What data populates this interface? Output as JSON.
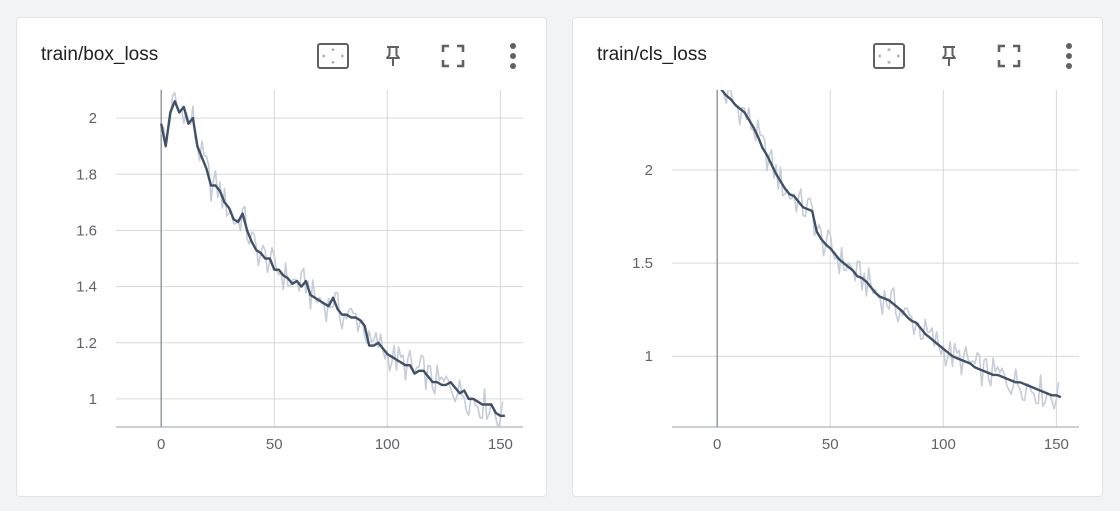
{
  "colors": {
    "background": "#f1f3f4",
    "card": "#ffffff",
    "grid": "#d6d9dc",
    "zero_axis": "#9aa0a6",
    "axis": "#9aa0a6",
    "smoothed_line": "#425066",
    "raw_line": "#c6cdd8",
    "icon": "#616161"
  },
  "icons": {
    "fit_domain": "fit-domain-icon",
    "pin": "pin-icon",
    "fullscreen": "fullscreen-icon",
    "more": "more-vert-icon"
  },
  "charts": [
    {
      "title": "train/box_loss",
      "chart_data": {
        "type": "line",
        "title": "train/box_loss",
        "xlabel": "",
        "ylabel": "",
        "xlim": [
          -20,
          160
        ],
        "ylim": [
          0.9,
          2.1
        ],
        "x_ticks": [
          0,
          50,
          100,
          150
        ],
        "y_ticks": [
          1,
          1.2,
          1.4,
          1.6,
          1.8,
          2
        ],
        "y_tick_labels": [
          "1",
          "1.2",
          "1.4",
          "1.6",
          "1.8",
          "2"
        ],
        "grid": true,
        "series": [
          {
            "x": [
              0,
              2,
              4,
              6,
              8,
              10,
              12,
              14,
              16,
              18,
              20,
              22,
              24,
              26,
              28,
              30,
              32,
              34,
              36,
              38,
              40,
              42,
              44,
              46,
              48,
              50,
              52,
              54,
              56,
              58,
              60,
              62,
              64,
              66,
              68,
              70,
              72,
              74,
              76,
              78,
              80,
              82,
              84,
              86,
              88,
              90,
              92,
              94,
              96,
              98,
              100,
              102,
              104,
              106,
              108,
              110,
              112,
              114,
              116,
              118,
              120,
              122,
              124,
              126,
              128,
              130,
              132,
              134,
              136,
              138,
              140,
              142,
              144,
              146,
              148,
              150,
              152
            ],
            "y": [
              1.98,
              1.9,
              2.02,
              2.06,
              2.02,
              2.04,
              1.98,
              2.0,
              1.9,
              1.86,
              1.82,
              1.76,
              1.76,
              1.74,
              1.7,
              1.68,
              1.64,
              1.63,
              1.66,
              1.6,
              1.56,
              1.53,
              1.52,
              1.5,
              1.5,
              1.46,
              1.46,
              1.44,
              1.43,
              1.41,
              1.42,
              1.4,
              1.42,
              1.37,
              1.36,
              1.35,
              1.34,
              1.33,
              1.36,
              1.32,
              1.3,
              1.3,
              1.29,
              1.29,
              1.28,
              1.26,
              1.19,
              1.19,
              1.2,
              1.18,
              1.16,
              1.15,
              1.14,
              1.13,
              1.12,
              1.12,
              1.09,
              1.1,
              1.1,
              1.08,
              1.06,
              1.06,
              1.05,
              1.05,
              1.06,
              1.04,
              1.02,
              1.03,
              1.0,
              1.0,
              0.99,
              0.98,
              0.98,
              0.98,
              0.95,
              0.94,
              0.94
            ]
          }
        ]
      }
    },
    {
      "title": "train/cls_loss",
      "chart_data": {
        "type": "line",
        "title": "train/cls_loss",
        "xlabel": "",
        "ylabel": "",
        "xlim": [
          -20,
          160
        ],
        "ylim": [
          0.62,
          2.43
        ],
        "x_ticks": [
          0,
          50,
          100,
          150
        ],
        "y_ticks": [
          1,
          1.5,
          2
        ],
        "y_tick_labels": [
          "1",
          "1.5",
          "2"
        ],
        "grid": true,
        "series": [
          {
            "x": [
              0,
              2,
              4,
              6,
              8,
              10,
              12,
              14,
              16,
              18,
              20,
              22,
              24,
              26,
              28,
              30,
              32,
              34,
              36,
              38,
              40,
              42,
              44,
              46,
              48,
              50,
              52,
              54,
              56,
              58,
              60,
              62,
              64,
              66,
              68,
              70,
              72,
              74,
              76,
              78,
              80,
              82,
              84,
              86,
              88,
              90,
              92,
              94,
              96,
              98,
              100,
              102,
              104,
              106,
              108,
              110,
              112,
              114,
              116,
              118,
              120,
              122,
              124,
              126,
              128,
              130,
              132,
              134,
              136,
              138,
              140,
              142,
              144,
              146,
              148,
              150,
              152
            ],
            "y": [
              2.5,
              2.43,
              2.4,
              2.38,
              2.35,
              2.33,
              2.31,
              2.27,
              2.23,
              2.18,
              2.12,
              2.08,
              2.03,
              1.98,
              1.94,
              1.9,
              1.87,
              1.86,
              1.83,
              1.8,
              1.79,
              1.78,
              1.67,
              1.63,
              1.6,
              1.58,
              1.55,
              1.52,
              1.5,
              1.48,
              1.46,
              1.43,
              1.42,
              1.4,
              1.37,
              1.34,
              1.32,
              1.31,
              1.3,
              1.28,
              1.26,
              1.24,
              1.21,
              1.19,
              1.18,
              1.15,
              1.12,
              1.1,
              1.08,
              1.06,
              1.04,
              1.02,
              1.0,
              0.99,
              0.98,
              0.97,
              0.96,
              0.94,
              0.93,
              0.92,
              0.91,
              0.9,
              0.9,
              0.89,
              0.88,
              0.87,
              0.86,
              0.86,
              0.85,
              0.84,
              0.83,
              0.82,
              0.81,
              0.8,
              0.79,
              0.79,
              0.78
            ]
          }
        ]
      }
    }
  ]
}
